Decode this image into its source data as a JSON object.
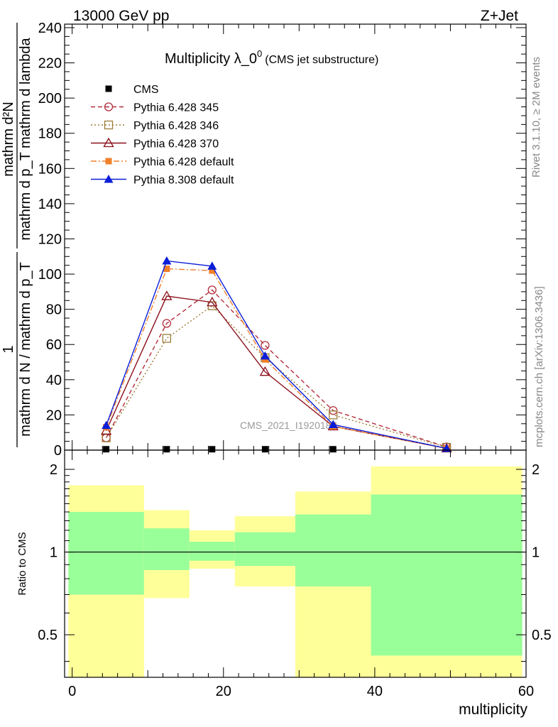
{
  "header": {
    "left": "13000 GeV pp",
    "right": "Z+Jet"
  },
  "side_labels": {
    "rivet": "Rivet 3.1.10, ≥ 2M events",
    "mcplots": "mcplots.cern.ch [arXiv:1306.3436]"
  },
  "watermark": "CMS_2021_I1920187",
  "chart_data": [
    {
      "type": "line",
      "title_main": "Multiplicity λ_0",
      "title_sup": "0",
      "title_sub": "(CMS jet substructure)",
      "ylabel_num": "mathrm d²N",
      "ylabel_den": "mathrm d p_T mathrm d lambda",
      "ylabel_prefix_num": "1",
      "ylabel_prefix_den": "mathrm d N / mathrm d p_T",
      "xlim": [
        -1,
        60
      ],
      "ylim": [
        0,
        242
      ],
      "yticks": [
        0,
        20,
        40,
        60,
        80,
        100,
        120,
        140,
        160,
        180,
        200,
        220,
        240
      ],
      "legend_position": "top-left",
      "series": [
        {
          "name": "CMS",
          "color": "#000000",
          "marker": "square-filled",
          "x": [
            4.5,
            12.5,
            18.5,
            25.5,
            34.5
          ],
          "values": [
            0.5,
            0.5,
            0.5,
            0.5,
            0.5
          ]
        },
        {
          "name": "Pythia 6.428 345",
          "color": "#b22e3c",
          "marker": "circle-open",
          "dash": "6,4",
          "x": [
            4.5,
            12.5,
            18.5,
            25.5,
            34.5,
            49.5
          ],
          "values": [
            7,
            72,
            91,
            59.5,
            22.5,
            1.8
          ]
        },
        {
          "name": "Pythia 6.428 346",
          "color": "#9c7d38",
          "marker": "square-open",
          "dash": "2,3",
          "x": [
            4.5,
            12.5,
            18.5,
            25.5,
            34.5,
            49.5
          ],
          "values": [
            7,
            63.5,
            82,
            52.5,
            20,
            1.6
          ]
        },
        {
          "name": "Pythia 6.428 370",
          "color": "#8b0f1c",
          "marker": "triangle-open",
          "dash": "",
          "x": [
            4.5,
            12.5,
            18.5,
            25.5,
            34.5,
            49.5
          ],
          "values": [
            11,
            87.5,
            84,
            44.5,
            13.5,
            1
          ]
        },
        {
          "name": "Pythia 6.428 default",
          "color": "#f07f2a",
          "marker": "square-filled",
          "dash": "8,3,2,3",
          "x": [
            4.5,
            12.5,
            18.5,
            25.5,
            34.5,
            49.5
          ],
          "values": [
            13,
            103,
            102,
            51.5,
            13.5,
            1
          ]
        },
        {
          "name": "Pythia 8.308 default",
          "color": "#0a1ed8",
          "marker": "triangle-filled",
          "dash": "",
          "x": [
            4.5,
            12.5,
            18.5,
            25.5,
            34.5,
            49.5
          ],
          "values": [
            14,
            107.5,
            104.5,
            53.5,
            14.5,
            1
          ]
        }
      ]
    },
    {
      "type": "area",
      "ylabel": "Ratio to CMS",
      "xlabel": "multiplicity",
      "scale": "log",
      "xlim": [
        -1,
        60
      ],
      "ylim": [
        0.35,
        2.35
      ],
      "yticks": [
        0.5,
        1,
        2
      ],
      "xticks": [
        0,
        20,
        40,
        60
      ],
      "reference_line": 1,
      "bands": [
        {
          "x0": -0.5,
          "x1": 9.5,
          "yellow": [
            0.3,
            1.75
          ],
          "green": [
            0.7,
            1.4
          ]
        },
        {
          "x0": 9.5,
          "x1": 15.5,
          "yellow": [
            0.68,
            1.42
          ],
          "green": [
            0.86,
            1.22
          ]
        },
        {
          "x0": 15.5,
          "x1": 21.5,
          "yellow": [
            0.87,
            1.2
          ],
          "green": [
            0.93,
            1.09
          ]
        },
        {
          "x0": 21.5,
          "x1": 29.5,
          "yellow": [
            0.75,
            1.35
          ],
          "green": [
            0.89,
            1.18
          ]
        },
        {
          "x0": 29.5,
          "x1": 39.5,
          "yellow": [
            0.3,
            1.66
          ],
          "green": [
            0.75,
            1.37
          ]
        },
        {
          "x0": 39.5,
          "x1": 59.5,
          "yellow": [
            0.3,
            2.05
          ],
          "green": [
            0.42,
            1.62
          ]
        }
      ]
    }
  ]
}
